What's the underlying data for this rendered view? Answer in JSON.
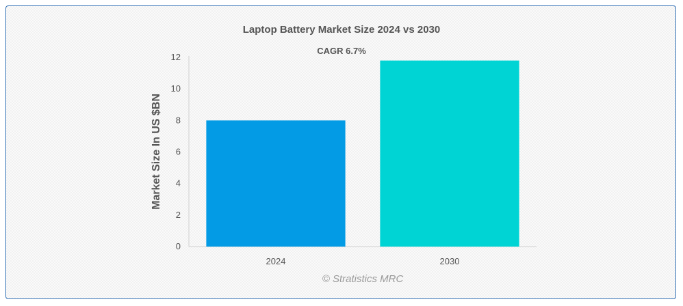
{
  "chart_data": {
    "type": "bar",
    "title": "Laptop Battery Market Size 2024 vs 2030",
    "annotation": "CAGR 6.7%",
    "xlabel": "",
    "ylabel": "Market Size In US $BN",
    "categories": [
      "2024",
      "2030"
    ],
    "values": [
      8.0,
      11.8
    ],
    "colors": [
      "#039be5",
      "#00d4d4"
    ],
    "ylim": [
      0,
      12
    ],
    "yticks": [
      0,
      2,
      4,
      6,
      8,
      10,
      12
    ],
    "grid": false,
    "legend": "none"
  },
  "watermark": "© Stratistics MRC"
}
